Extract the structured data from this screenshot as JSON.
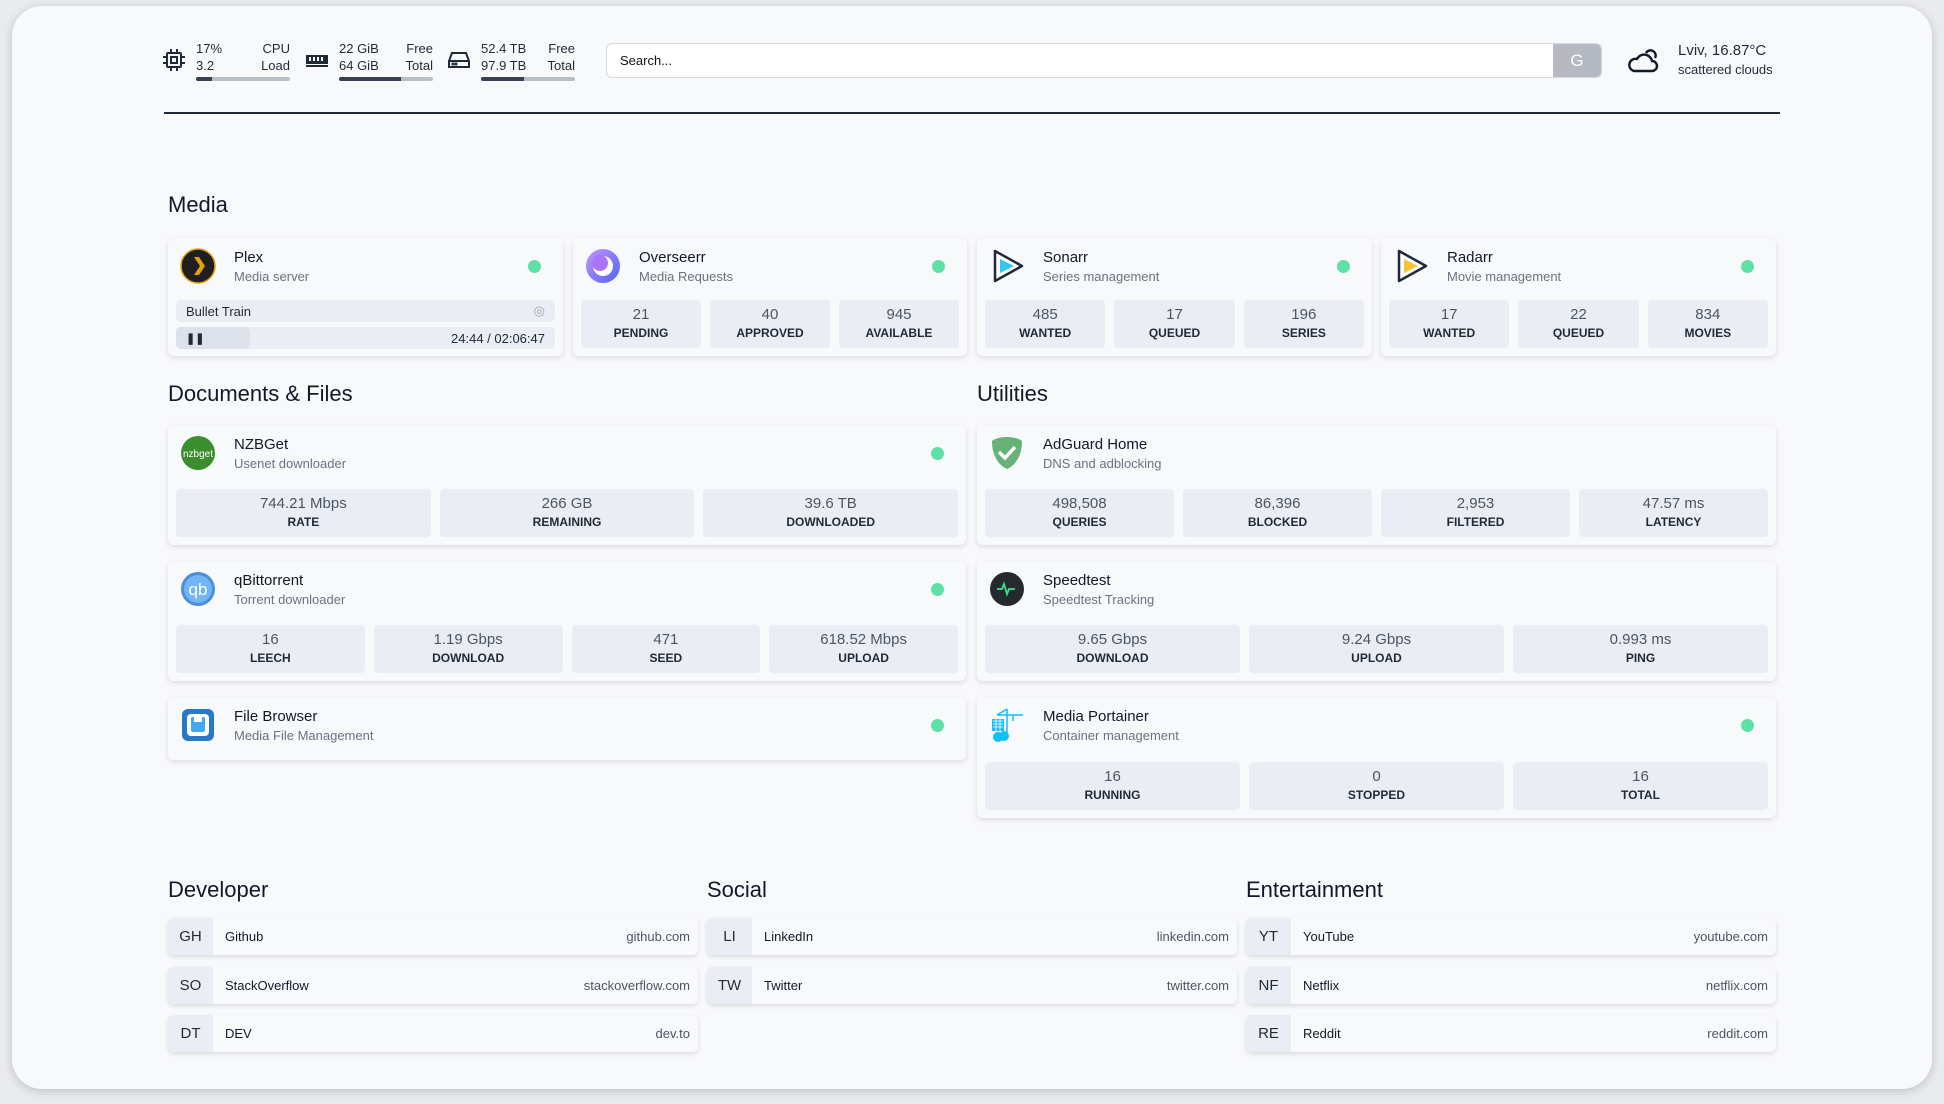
{
  "topbar": {
    "cpu": {
      "icon": "cpu-icon",
      "value1": "17%",
      "label1": "CPU",
      "value2": "3.2",
      "label2": "Load",
      "usage_percent": 17
    },
    "memory": {
      "icon": "memory-icon",
      "value1": "22 GiB",
      "label1": "Free",
      "value2": "64 GiB",
      "label2": "Total",
      "usage_percent": 66
    },
    "disk": {
      "icon": "disk-icon",
      "value1": "52.4 TB",
      "label1": "Free",
      "value2": "97.9 TB",
      "label2": "Total",
      "usage_percent": 46
    },
    "search": {
      "placeholder": "Search...",
      "button": "G"
    },
    "weather": {
      "icon": "cloud-sun-icon",
      "line1": "Lviv, 16.87°C",
      "line2": "scattered clouds"
    }
  },
  "sections": {
    "media": "Media",
    "documents": "Documents & Files",
    "utilities": "Utilities",
    "developer": "Developer",
    "social": "Social",
    "entertainment": "Entertainment"
  },
  "colors": {
    "status_online": "#5fe0a6",
    "accent_dark": "#1f2937"
  },
  "plex": {
    "title": "Plex",
    "subtitle": "Media server",
    "icon": "plex-icon",
    "now_playing": "Bullet Train",
    "time": "24:44 / 02:06:47",
    "progress_percent": 19.5
  },
  "cards": {
    "overseerr": {
      "title": "Overseerr",
      "subtitle": "Media Requests",
      "icon": "overseerr-icon",
      "stats": [
        {
          "v": "21",
          "l": "PENDING"
        },
        {
          "v": "40",
          "l": "APPROVED"
        },
        {
          "v": "945",
          "l": "AVAILABLE"
        }
      ]
    },
    "sonarr": {
      "title": "Sonarr",
      "subtitle": "Series management",
      "icon": "sonarr-icon",
      "stats": [
        {
          "v": "485",
          "l": "WANTED"
        },
        {
          "v": "17",
          "l": "QUEUED"
        },
        {
          "v": "196",
          "l": "SERIES"
        }
      ]
    },
    "radarr": {
      "title": "Radarr",
      "subtitle": "Movie management",
      "icon": "radarr-icon",
      "stats": [
        {
          "v": "17",
          "l": "WANTED"
        },
        {
          "v": "22",
          "l": "QUEUED"
        },
        {
          "v": "834",
          "l": "MOVIES"
        }
      ]
    },
    "nzbget": {
      "title": "NZBGet",
      "subtitle": "Usenet downloader",
      "icon": "nzbget-icon",
      "stats": [
        {
          "v": "744.21 Mbps",
          "l": "RATE"
        },
        {
          "v": "266 GB",
          "l": "REMAINING"
        },
        {
          "v": "39.6 TB",
          "l": "DOWNLOADED"
        }
      ]
    },
    "qbittorrent": {
      "title": "qBittorrent",
      "subtitle": "Torrent downloader",
      "icon": "qbittorrent-icon",
      "stats": [
        {
          "v": "16",
          "l": "LEECH"
        },
        {
          "v": "1.19 Gbps",
          "l": "DOWNLOAD"
        },
        {
          "v": "471",
          "l": "SEED"
        },
        {
          "v": "618.52 Mbps",
          "l": "UPLOAD"
        }
      ]
    },
    "filebrowser": {
      "title": "File Browser",
      "subtitle": "Media File Management",
      "icon": "filebrowser-icon",
      "stats": []
    },
    "adguard": {
      "title": "AdGuard Home",
      "subtitle": "DNS and adblocking",
      "icon": "adguard-icon",
      "stats": [
        {
          "v": "498,508",
          "l": "QUERIES"
        },
        {
          "v": "86,396",
          "l": "BLOCKED"
        },
        {
          "v": "2,953",
          "l": "FILTERED"
        },
        {
          "v": "47.57 ms",
          "l": "LATENCY"
        }
      ]
    },
    "speedtest": {
      "title": "Speedtest",
      "subtitle": "Speedtest Tracking",
      "icon": "speedtest-icon",
      "stats": [
        {
          "v": "9.65 Gbps",
          "l": "DOWNLOAD"
        },
        {
          "v": "9.24 Gbps",
          "l": "UPLOAD"
        },
        {
          "v": "0.993 ms",
          "l": "PING"
        }
      ]
    },
    "portainer": {
      "title": "Media Portainer",
      "subtitle": "Container management",
      "icon": "portainer-icon",
      "stats": [
        {
          "v": "16",
          "l": "RUNNING"
        },
        {
          "v": "0",
          "l": "STOPPED"
        },
        {
          "v": "16",
          "l": "TOTAL"
        }
      ]
    }
  },
  "bookmarks": {
    "developer": [
      {
        "abbr": "GH",
        "name": "Github",
        "url": "github.com"
      },
      {
        "abbr": "SO",
        "name": "StackOverflow",
        "url": "stackoverflow.com"
      },
      {
        "abbr": "DT",
        "name": "DEV",
        "url": "dev.to"
      }
    ],
    "social": [
      {
        "abbr": "LI",
        "name": "LinkedIn",
        "url": "linkedin.com"
      },
      {
        "abbr": "TW",
        "name": "Twitter",
        "url": "twitter.com"
      }
    ],
    "entertainment": [
      {
        "abbr": "YT",
        "name": "YouTube",
        "url": "youtube.com"
      },
      {
        "abbr": "NF",
        "name": "Netflix",
        "url": "netflix.com"
      },
      {
        "abbr": "RE",
        "name": "Reddit",
        "url": "reddit.com"
      }
    ]
  }
}
